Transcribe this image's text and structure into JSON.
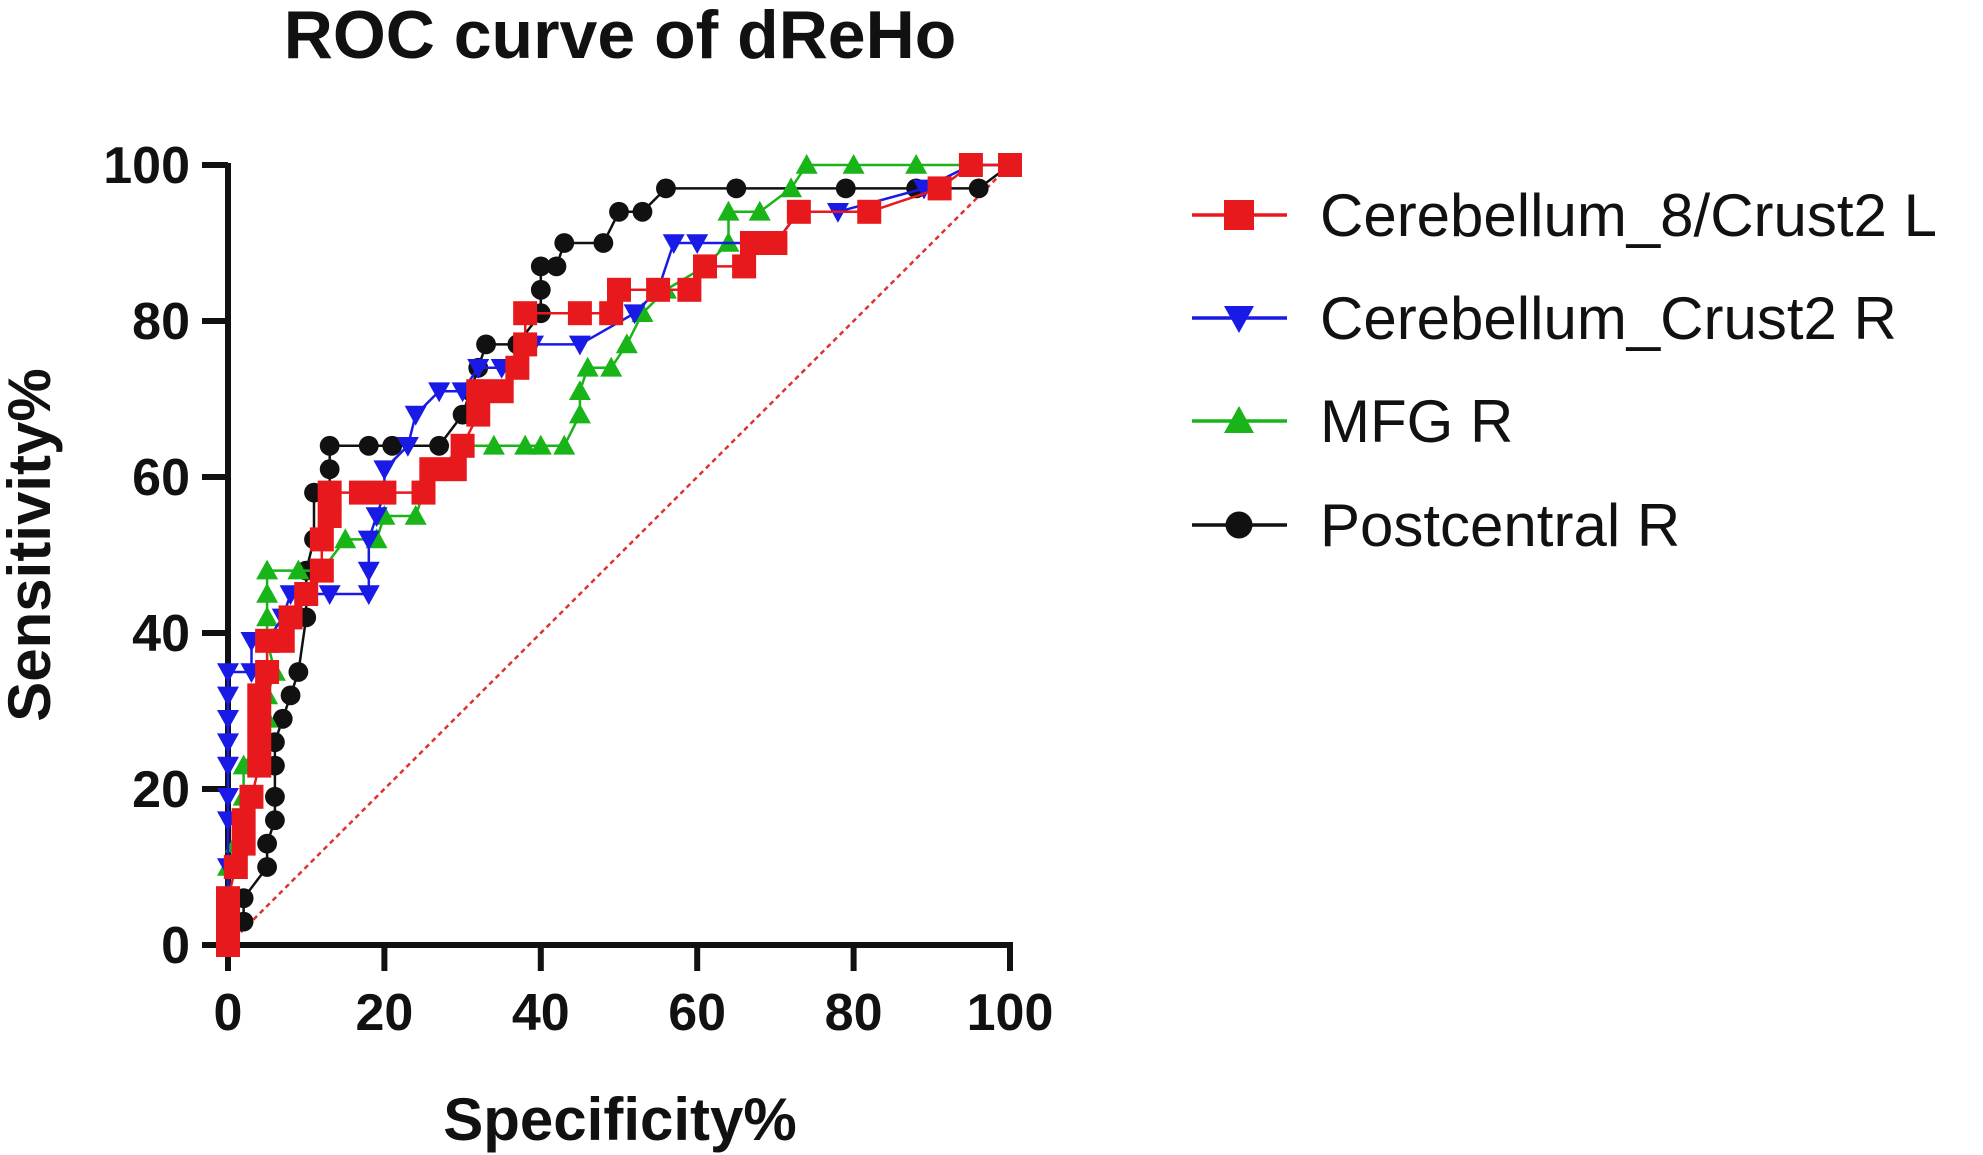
{
  "chart_data": {
    "type": "line",
    "title": "ROC curve of dReHo",
    "xlabel": "Specificity%",
    "ylabel": "Sensitivity%",
    "xlim": [
      0,
      100
    ],
    "ylim": [
      0,
      100
    ],
    "xticks": [
      0,
      20,
      40,
      60,
      80,
      100
    ],
    "yticks": [
      0,
      20,
      40,
      60,
      80,
      100
    ],
    "grid": false,
    "legend_position": "right",
    "reference_line": {
      "name": "chance",
      "color": "#e03030",
      "points": [
        [
          0,
          0
        ],
        [
          100,
          100
        ]
      ]
    },
    "series": [
      {
        "name": "Cerebellum_8/Crust2 L",
        "color": "#e8191c",
        "marker": "square",
        "points": [
          [
            0,
            0
          ],
          [
            0,
            3
          ],
          [
            0,
            6
          ],
          [
            1,
            10
          ],
          [
            2,
            13
          ],
          [
            2,
            16
          ],
          [
            3,
            19
          ],
          [
            4,
            23
          ],
          [
            4,
            26
          ],
          [
            4,
            29
          ],
          [
            4,
            32
          ],
          [
            5,
            35
          ],
          [
            5,
            39
          ],
          [
            7,
            39
          ],
          [
            8,
            42
          ],
          [
            10,
            45
          ],
          [
            12,
            48
          ],
          [
            12,
            52
          ],
          [
            13,
            55
          ],
          [
            13,
            58
          ],
          [
            17,
            58
          ],
          [
            20,
            58
          ],
          [
            25,
            58
          ],
          [
            26,
            61
          ],
          [
            29,
            61
          ],
          [
            30,
            64
          ],
          [
            32,
            68
          ],
          [
            32,
            71
          ],
          [
            35,
            71
          ],
          [
            37,
            74
          ],
          [
            38,
            77
          ],
          [
            38,
            81
          ],
          [
            45,
            81
          ],
          [
            49,
            81
          ],
          [
            50,
            84
          ],
          [
            55,
            84
          ],
          [
            59,
            84
          ],
          [
            61,
            87
          ],
          [
            66,
            87
          ],
          [
            67,
            90
          ],
          [
            70,
            90
          ],
          [
            73,
            94
          ],
          [
            82,
            94
          ],
          [
            91,
            97
          ],
          [
            95,
            100
          ],
          [
            100,
            100
          ]
        ]
      },
      {
        "name": "Cerebellum_Crust2 R",
        "color": "#1a1ae6",
        "marker": "triangle-down",
        "points": [
          [
            0,
            0
          ],
          [
            0,
            10
          ],
          [
            0,
            16
          ],
          [
            0,
            19
          ],
          [
            0,
            23
          ],
          [
            0,
            26
          ],
          [
            0,
            29
          ],
          [
            0,
            32
          ],
          [
            0,
            35
          ],
          [
            3,
            35
          ],
          [
            3,
            39
          ],
          [
            5,
            39
          ],
          [
            7,
            42
          ],
          [
            8,
            45
          ],
          [
            13,
            45
          ],
          [
            18,
            45
          ],
          [
            18,
            48
          ],
          [
            18,
            52
          ],
          [
            19,
            55
          ],
          [
            20,
            58
          ],
          [
            20,
            61
          ],
          [
            23,
            64
          ],
          [
            24,
            68
          ],
          [
            27,
            71
          ],
          [
            30,
            71
          ],
          [
            32,
            74
          ],
          [
            35,
            74
          ],
          [
            39,
            77
          ],
          [
            45,
            77
          ],
          [
            52,
            81
          ],
          [
            55,
            84
          ],
          [
            57,
            90
          ],
          [
            60,
            90
          ],
          [
            67,
            90
          ],
          [
            70,
            90
          ],
          [
            73,
            94
          ],
          [
            78,
            94
          ],
          [
            89,
            97
          ],
          [
            95,
            100
          ],
          [
            100,
            100
          ]
        ]
      },
      {
        "name": "MFG R",
        "color": "#18b418",
        "marker": "triangle-up",
        "points": [
          [
            0,
            0
          ],
          [
            0,
            6
          ],
          [
            0,
            10
          ],
          [
            1,
            13
          ],
          [
            2,
            16
          ],
          [
            2,
            19
          ],
          [
            2,
            23
          ],
          [
            4,
            26
          ],
          [
            5,
            29
          ],
          [
            5,
            32
          ],
          [
            6,
            35
          ],
          [
            5,
            39
          ],
          [
            5,
            42
          ],
          [
            5,
            45
          ],
          [
            5,
            48
          ],
          [
            9,
            48
          ],
          [
            12,
            48
          ],
          [
            15,
            52
          ],
          [
            19,
            52
          ],
          [
            20,
            55
          ],
          [
            24,
            55
          ],
          [
            25,
            58
          ],
          [
            27,
            61
          ],
          [
            30,
            64
          ],
          [
            34,
            64
          ],
          [
            38,
            64
          ],
          [
            40,
            64
          ],
          [
            43,
            64
          ],
          [
            45,
            68
          ],
          [
            45,
            71
          ],
          [
            46,
            74
          ],
          [
            49,
            74
          ],
          [
            51,
            77
          ],
          [
            53,
            81
          ],
          [
            56,
            84
          ],
          [
            61,
            87
          ],
          [
            64,
            90
          ],
          [
            64,
            94
          ],
          [
            68,
            94
          ],
          [
            72,
            97
          ],
          [
            74,
            100
          ],
          [
            80,
            100
          ],
          [
            88,
            100
          ],
          [
            100,
            100
          ]
        ]
      },
      {
        "name": "Postcentral R",
        "color": "#111111",
        "marker": "circle",
        "points": [
          [
            0,
            0
          ],
          [
            2,
            3
          ],
          [
            2,
            6
          ],
          [
            5,
            10
          ],
          [
            5,
            13
          ],
          [
            6,
            16
          ],
          [
            6,
            19
          ],
          [
            6,
            23
          ],
          [
            6,
            26
          ],
          [
            7,
            29
          ],
          [
            8,
            32
          ],
          [
            9,
            35
          ],
          [
            10,
            42
          ],
          [
            10,
            48
          ],
          [
            11,
            52
          ],
          [
            11,
            58
          ],
          [
            13,
            58
          ],
          [
            13,
            61
          ],
          [
            13,
            64
          ],
          [
            18,
            64
          ],
          [
            21,
            64
          ],
          [
            27,
            64
          ],
          [
            30,
            68
          ],
          [
            31,
            71
          ],
          [
            32,
            74
          ],
          [
            33,
            77
          ],
          [
            37,
            77
          ],
          [
            40,
            81
          ],
          [
            40,
            84
          ],
          [
            40,
            87
          ],
          [
            42,
            87
          ],
          [
            43,
            90
          ],
          [
            48,
            90
          ],
          [
            50,
            94
          ],
          [
            53,
            94
          ],
          [
            56,
            97
          ],
          [
            65,
            97
          ],
          [
            79,
            97
          ],
          [
            88,
            97
          ],
          [
            96,
            97
          ],
          [
            100,
            100
          ]
        ]
      }
    ]
  }
}
